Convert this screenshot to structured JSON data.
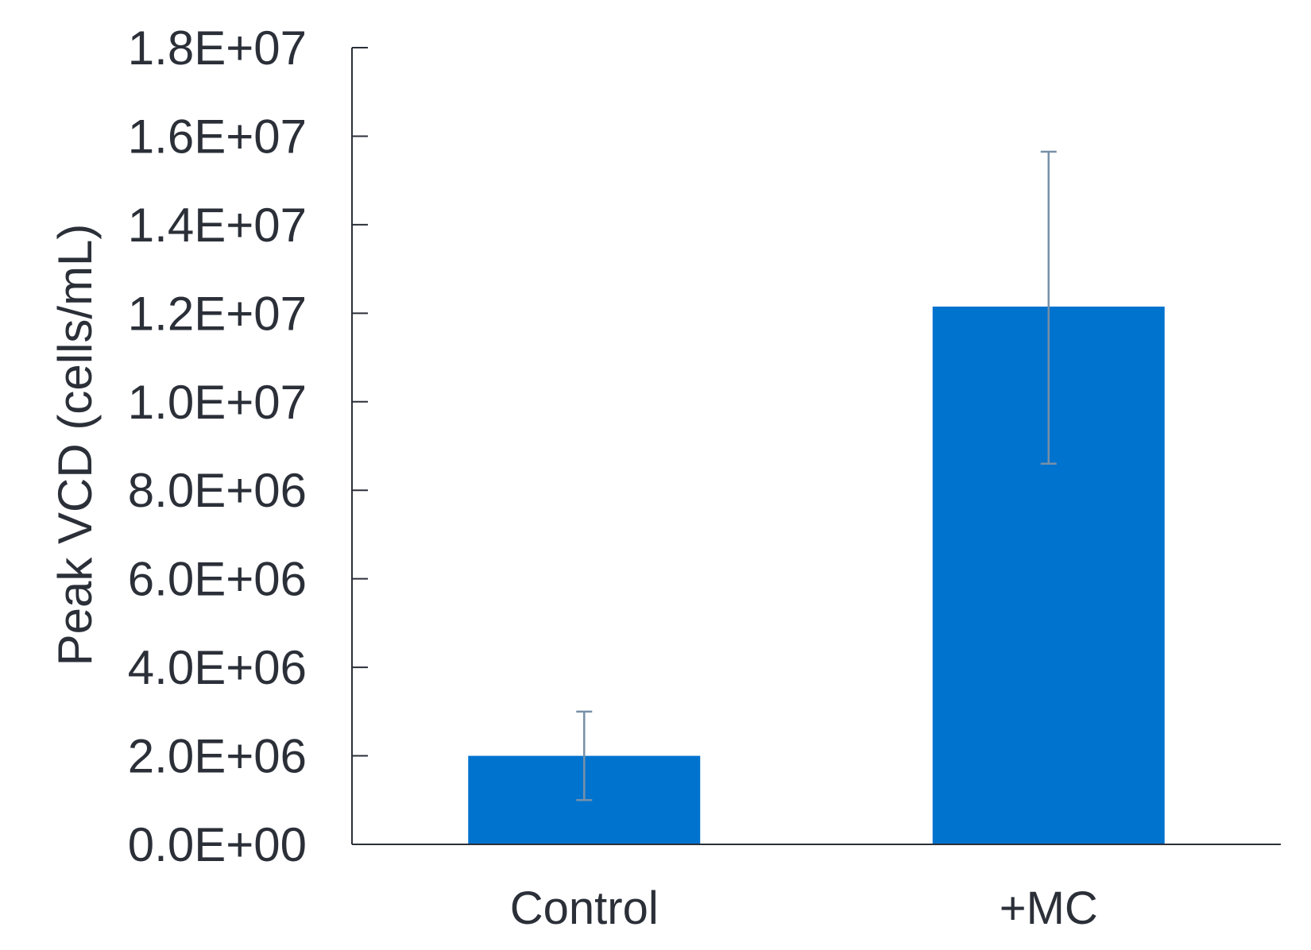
{
  "chart_data": {
    "type": "bar",
    "title": "",
    "xlabel": "",
    "ylabel": "Peak VCD (cells/mL)",
    "categories": [
      "Control",
      "+MC"
    ],
    "values": [
      2000000,
      12150000
    ],
    "error_low": [
      1000000,
      8600000
    ],
    "error_high": [
      3000000,
      15650000
    ],
    "ylim": [
      0,
      18000000
    ],
    "y_ticks": [
      0,
      2000000,
      4000000,
      6000000,
      8000000,
      10000000,
      12000000,
      14000000,
      16000000,
      18000000
    ],
    "y_tick_labels": [
      "0.0E+00",
      "2.0E+06",
      "4.0E+06",
      "6.0E+06",
      "8.0E+06",
      "1.0E+07",
      "1.2E+07",
      "1.4E+07",
      "1.6E+07",
      "1.8E+07"
    ],
    "grid": false,
    "legend": "none",
    "colors": {
      "bar": "#0073cf",
      "error_bar": "#7790a8",
      "axis": "#2b2f38"
    }
  }
}
